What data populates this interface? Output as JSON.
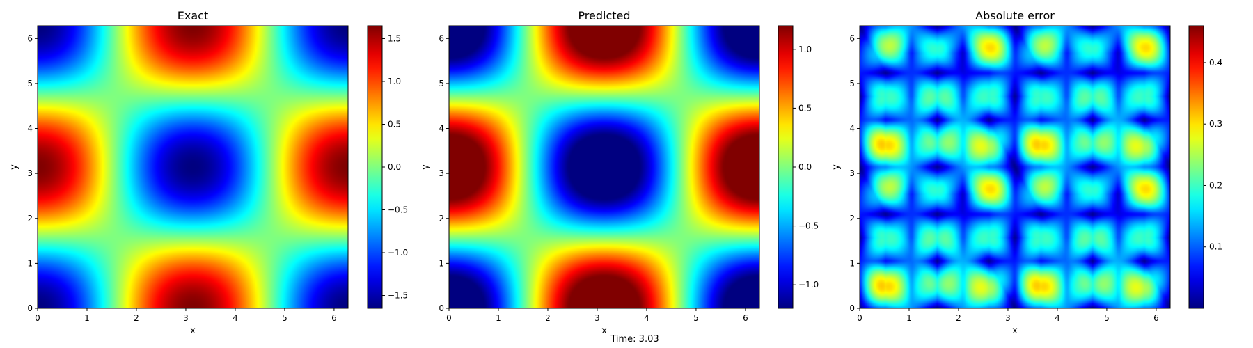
{
  "figure": {
    "footer": "Time: 3.03"
  },
  "colormap": "jet",
  "chart_data": [
    {
      "type": "heatmap",
      "title": "Exact",
      "xlabel": "x",
      "ylabel": "y",
      "xlim": [
        0,
        6.283
      ],
      "ylim": [
        0,
        6.283
      ],
      "xticks": [
        0,
        1,
        2,
        3,
        4,
        5,
        6
      ],
      "yticks": [
        0,
        1,
        2,
        3,
        4,
        5,
        6
      ],
      "field": "-1.65*cos(x)*cos(y)",
      "colorbar": {
        "vmin": -1.65,
        "vmax": 1.65,
        "ticks": [
          1.5,
          1.0,
          0.5,
          0.0,
          -0.5,
          -1.0,
          -1.5
        ],
        "tick_labels": [
          "1.5",
          "1.0",
          "0.5",
          "0.0",
          "−0.5",
          "−1.0",
          "−1.5"
        ]
      }
    },
    {
      "type": "heatmap",
      "title": "Predicted",
      "xlabel": "x",
      "ylabel": "y",
      "xlim": [
        0,
        6.283
      ],
      "ylim": [
        0,
        6.283
      ],
      "xticks": [
        0,
        1,
        2,
        3,
        4,
        5,
        6
      ],
      "yticks": [
        0,
        1,
        2,
        3,
        4,
        5,
        6
      ],
      "field": "-1.6*cos(x)*cos(y), clipped to colorbar range",
      "colorbar": {
        "vmin": -1.2,
        "vmax": 1.2,
        "ticks": [
          1.0,
          0.5,
          0.0,
          -0.5,
          -1.0
        ],
        "tick_labels": [
          "1.0",
          "0.5",
          "0.0",
          "−0.5",
          "−1.0"
        ]
      }
    },
    {
      "type": "heatmap",
      "title": "Absolute error",
      "xlabel": "x",
      "ylabel": "y",
      "xlim": [
        0,
        6.283
      ],
      "ylim": [
        0,
        6.283
      ],
      "xticks": [
        0,
        1,
        2,
        3,
        4,
        5,
        6
      ],
      "yticks": [
        0,
        1,
        2,
        3,
        4,
        5,
        6
      ],
      "field": "|exact - predicted| (nodal lines near x≈1.57, 4.71 and y≈1.57, 4.71)",
      "colorbar": {
        "vmin": 0.0,
        "vmax": 0.46,
        "ticks": [
          0.4,
          0.3,
          0.2,
          0.1
        ],
        "tick_labels": [
          "0.4",
          "0.3",
          "0.2",
          "0.1"
        ]
      }
    }
  ]
}
